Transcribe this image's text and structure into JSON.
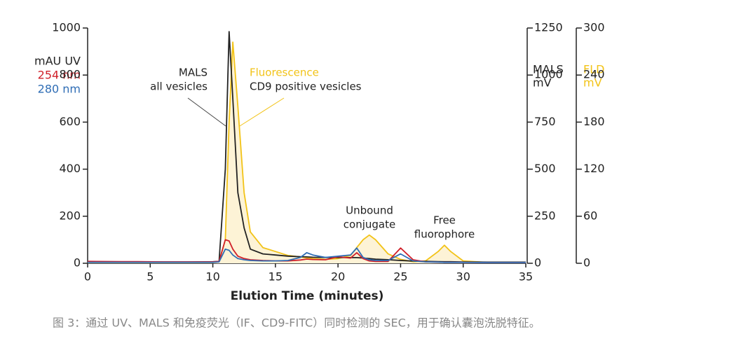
{
  "chart_data": {
    "type": "line",
    "xlabel": "Elution Time (minutes)",
    "ylabel": "mAU UV",
    "y2label": "mV",
    "y3label": "mV",
    "caption": "图 3：通过 UV、MALS 和免疫荧光（IF、CD9-FITC）同时检测的 SEC，用于确认囊泡洗脱特征。",
    "annotations": [
      "MALS",
      "all vesicles",
      "Fluorescence",
      "CD9 positive vesicles",
      "Unbound",
      "conjugate",
      "Free",
      "fluorophore"
    ],
    "xlim": [
      0,
      35
    ],
    "xticks": [
      0,
      5,
      10,
      15,
      20,
      25,
      30,
      35
    ],
    "ylim": [
      0,
      1000
    ],
    "yticks": [
      0,
      200,
      400,
      600,
      800,
      1000
    ],
    "y2lim": [
      0,
      1250
    ],
    "y2ticks": [
      0,
      250,
      500,
      750,
      1000,
      1250
    ],
    "y3lim": [
      0,
      300
    ],
    "y3ticks": [
      0,
      60,
      120,
      180,
      240,
      300
    ],
    "x": [
      0,
      2,
      4,
      6,
      8,
      10,
      10.5,
      11,
      11.3,
      11.6,
      12,
      12.5,
      13,
      14,
      15,
      16,
      17,
      17.5,
      18,
      19,
      20,
      21,
      21.5,
      22,
      22.5,
      23,
      24,
      25,
      26,
      27,
      28,
      28.5,
      29,
      30,
      32,
      35
    ],
    "series": [
      {
        "name": "FLD",
        "color": "#f2c318",
        "axis": "y3",
        "fill": "#fdf3d6",
        "values": [
          1,
          1,
          1,
          1,
          1,
          1,
          2,
          30,
          180,
          282,
          200,
          90,
          40,
          20,
          15,
          10,
          8,
          7,
          6,
          5,
          6,
          10,
          20,
          30,
          36,
          30,
          12,
          5,
          2,
          3,
          15,
          23,
          15,
          3,
          1,
          1
        ]
      },
      {
        "name": "MALS",
        "color": "#222222",
        "axis": "y2",
        "values": [
          8,
          8,
          7,
          7,
          7,
          8,
          10,
          500,
          1231,
          875,
          375,
          188,
          75,
          50,
          44,
          38,
          35,
          34,
          32,
          31,
          31,
          30,
          30,
          28,
          25,
          22,
          19,
          15,
          12,
          10,
          9,
          8,
          8,
          7,
          6,
          6
        ]
      },
      {
        "name": "254 nm",
        "color": "#d0202a",
        "axis": "y",
        "values": [
          8,
          7,
          7,
          6,
          6,
          6,
          8,
          100,
          95,
          60,
          30,
          20,
          15,
          12,
          10,
          10,
          14,
          18,
          16,
          15,
          28,
          22,
          45,
          20,
          10,
          8,
          8,
          65,
          15,
          6,
          5,
          4,
          4,
          4,
          3,
          3
        ]
      },
      {
        "name": "280 nm",
        "color": "#2f6db5",
        "axis": "y",
        "values": [
          4,
          4,
          4,
          4,
          4,
          4,
          6,
          60,
          55,
          35,
          20,
          15,
          12,
          10,
          10,
          12,
          25,
          45,
          35,
          25,
          30,
          35,
          65,
          25,
          15,
          12,
          12,
          40,
          10,
          6,
          5,
          4,
          4,
          4,
          3,
          3
        ]
      }
    ]
  }
}
